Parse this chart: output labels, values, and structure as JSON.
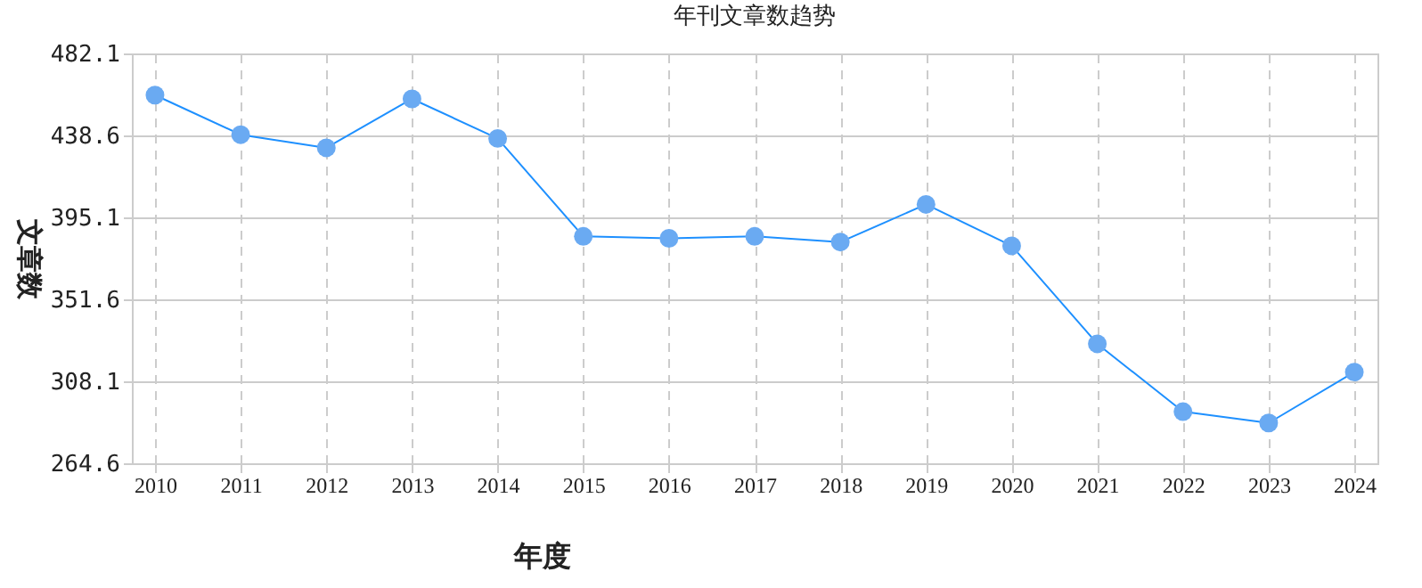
{
  "chart_data": {
    "type": "line",
    "title": "年刊文章数趋势",
    "xlabel": "年度",
    "ylabel": "文章数",
    "categories": [
      "2010",
      "2011",
      "2012",
      "2013",
      "2014",
      "2015",
      "2016",
      "2017",
      "2018",
      "2019",
      "2020",
      "2021",
      "2022",
      "2023",
      "2024"
    ],
    "series": [
      {
        "color": "#1e90ff",
        "values": [
          460,
          439,
          432,
          458,
          437,
          385,
          384,
          385,
          382,
          402,
          380,
          328,
          292,
          286,
          313
        ]
      }
    ],
    "ylim": [
      264.6,
      482.1
    ],
    "yticks": [
      264.6,
      308.1,
      351.6,
      395.1,
      438.6,
      482.1
    ],
    "grid": true,
    "marker": "circle",
    "line_style": "solid",
    "legend": false
  }
}
